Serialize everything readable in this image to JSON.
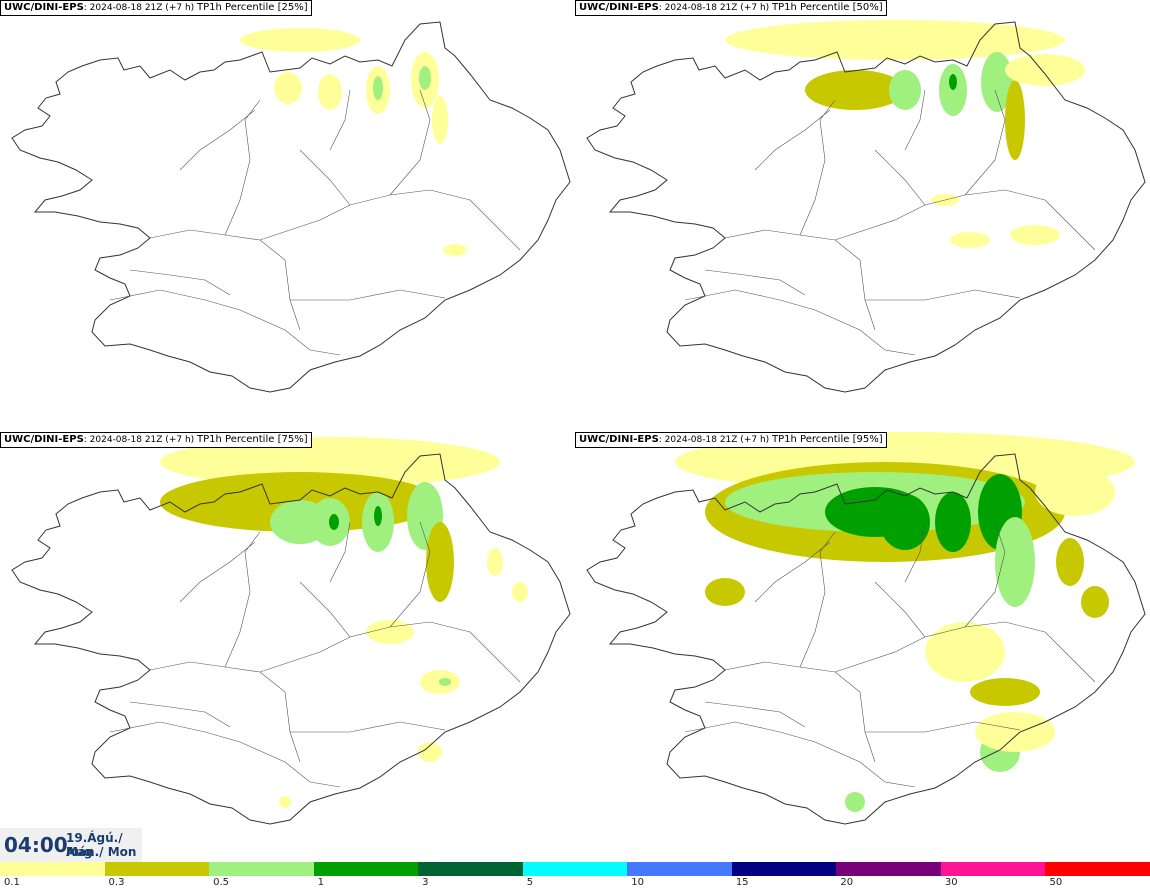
{
  "panels": [
    {
      "source": "UWC/DINI-EPS",
      "run": ": 2024-08-18 21Z (+7 h)",
      "param": "TP1h Percentile [25%]",
      "level": 0
    },
    {
      "source": "UWC/DINI-EPS",
      "run": ": 2024-08-18 21Z (+7 h)",
      "param": "TP1h Percentile [50%]",
      "level": 1
    },
    {
      "source": "UWC/DINI-EPS",
      "run": ": 2024-08-18 21Z (+7 h)",
      "param": "TP1h Percentile [75%]",
      "level": 2
    },
    {
      "source": "UWC/DINI-EPS",
      "run": ": 2024-08-18 21Z (+7 h)",
      "param": "TP1h Percentile [95%]",
      "level": 3
    }
  ],
  "valid_time": {
    "clock": "04:00",
    "date_line1": "19.Ágú./ Aug",
    "date_line2": "Mán./ Mon"
  },
  "legend": {
    "colors": [
      "#ffff99",
      "#c8c800",
      "#a0f080",
      "#00a000",
      "#006432",
      "#00ffff",
      "#4678ff",
      "#000080",
      "#780078",
      "#ff1493",
      "#ff0000"
    ],
    "labels": [
      "0.1",
      "0.3",
      "0.5",
      "1",
      "3",
      "5",
      "10",
      "15",
      "20",
      "30",
      "50"
    ]
  }
}
